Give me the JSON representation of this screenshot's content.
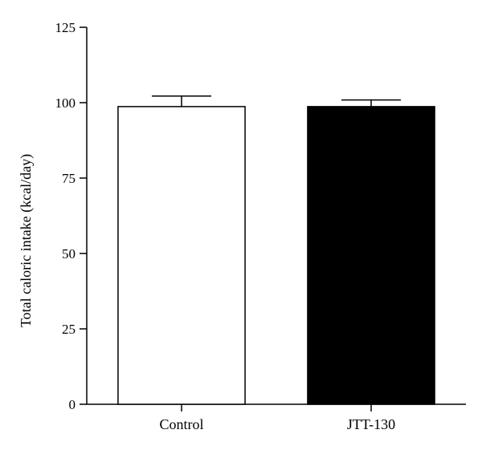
{
  "chart_data": {
    "type": "bar",
    "title": "",
    "xlabel": "",
    "ylabel": "Total caloric intake (kcal/day)",
    "categories": [
      "Control",
      "JTT-130"
    ],
    "values": [
      98.7,
      98.7
    ],
    "error": [
      3.5,
      2.2
    ],
    "bar_colors": [
      "#ffffff",
      "#000000"
    ],
    "bar_edge_color": "#000000",
    "ylim": [
      0,
      125
    ],
    "yticks": [
      0,
      25,
      50,
      75,
      100,
      125
    ],
    "grid": false,
    "legend": "none"
  }
}
